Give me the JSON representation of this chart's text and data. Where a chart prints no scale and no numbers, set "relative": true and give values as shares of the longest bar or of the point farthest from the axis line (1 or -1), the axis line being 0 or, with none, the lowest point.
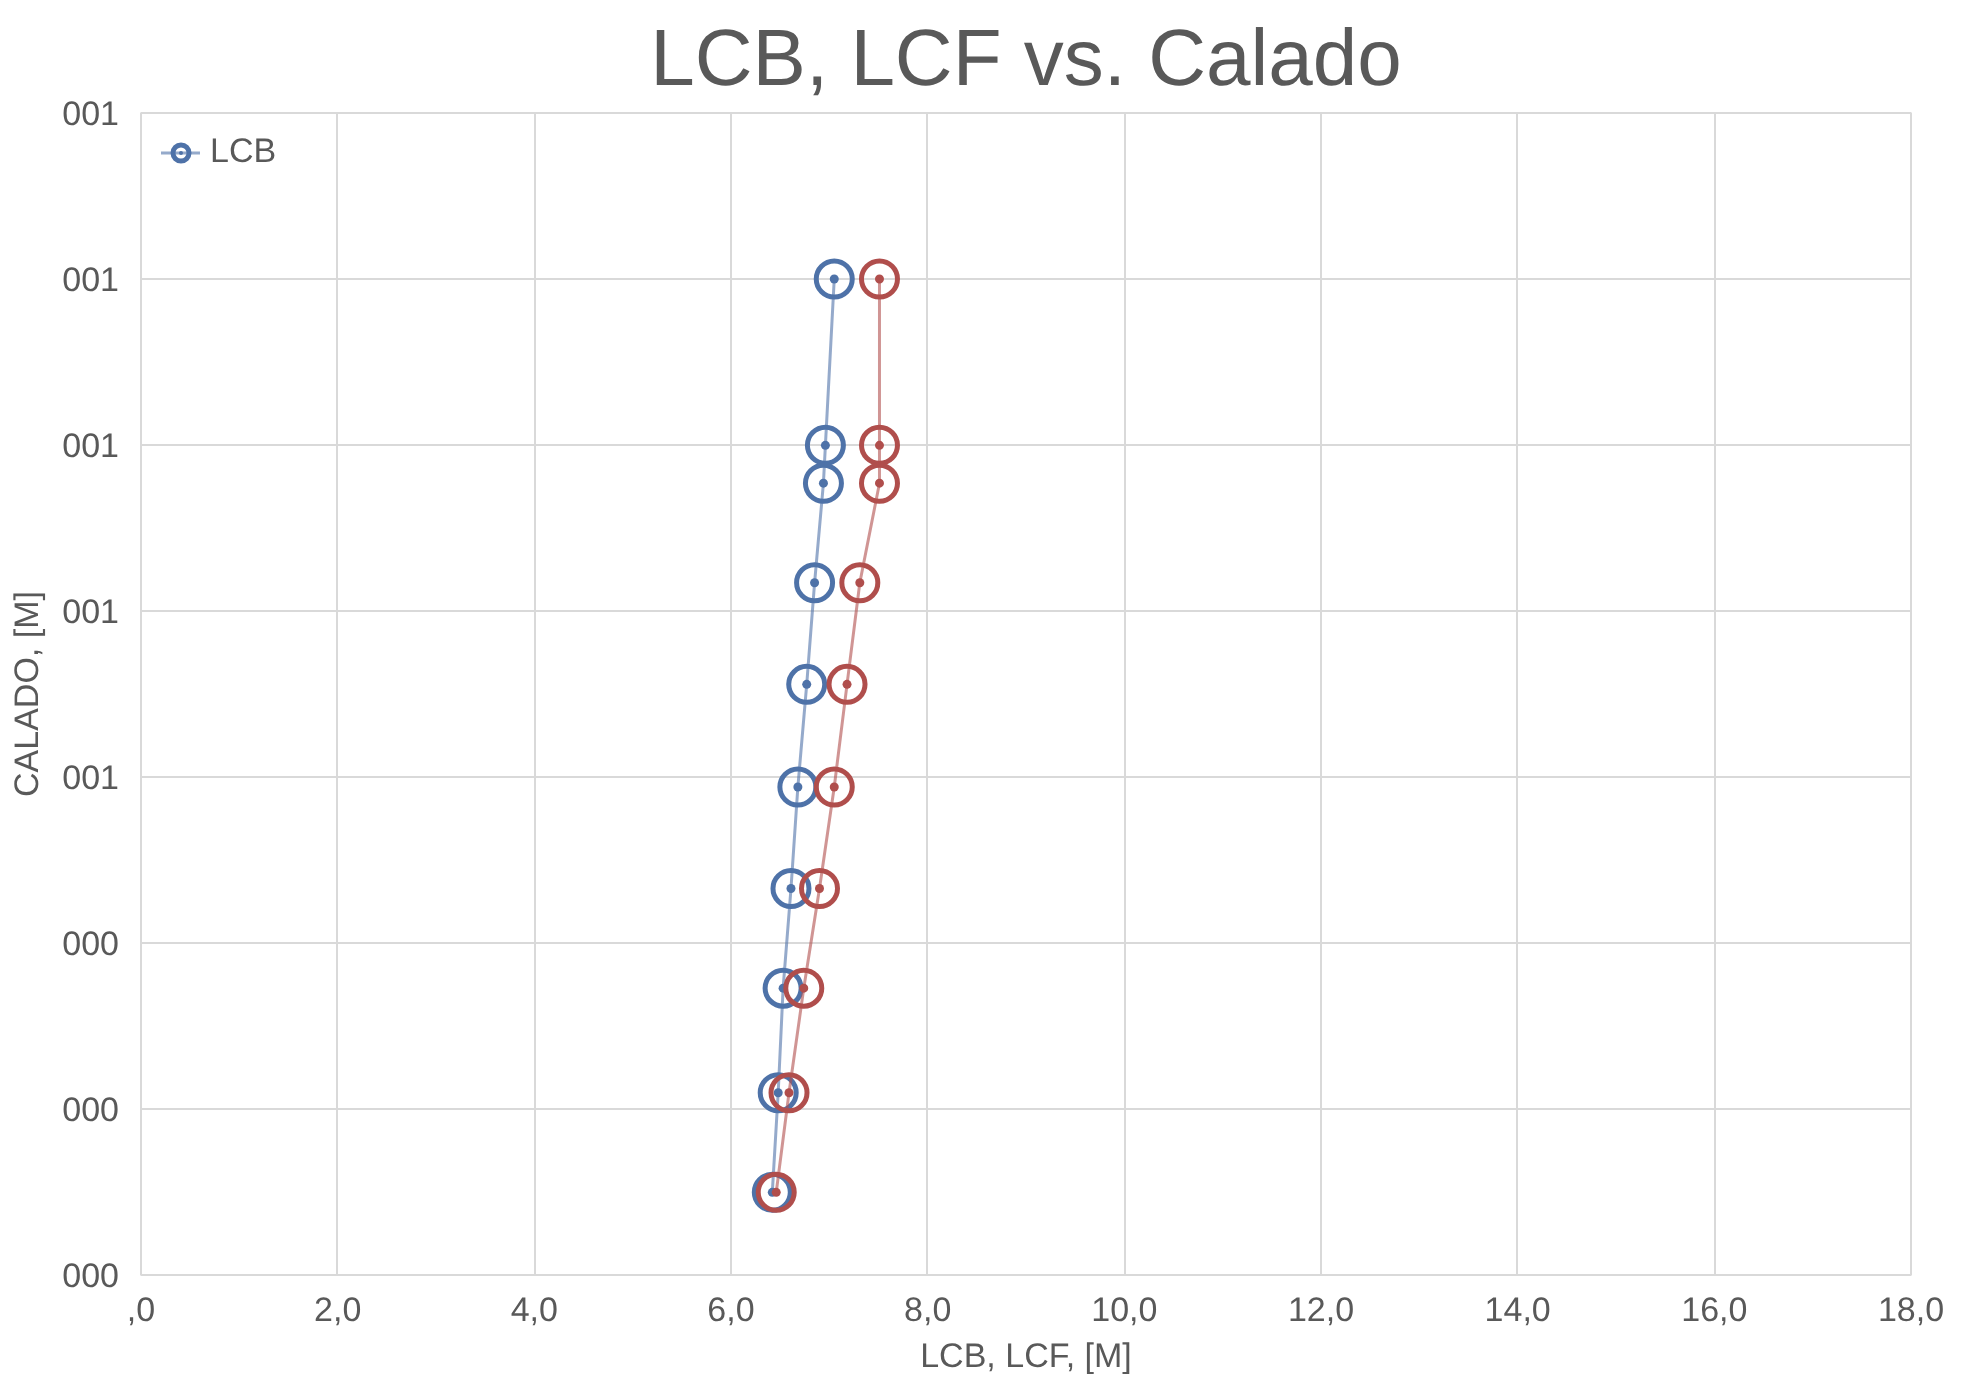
{
  "chart_data": {
    "type": "line",
    "title": "LCB, LCF vs. Calado",
    "xlabel": "LCB, LCF, [M]",
    "ylabel": "CALADO, [M]",
    "series": [
      {
        "name": "LCB",
        "color": "#4e72a8",
        "x": [
          7.05,
          6.96,
          6.94,
          6.85,
          6.77,
          6.68,
          6.61,
          6.53,
          6.48,
          6.42
        ],
        "values": [
          1,
          0.833,
          0.795,
          0.695,
          0.593,
          0.49,
          0.388,
          0.288,
          0.183,
          0.083
        ]
      },
      {
        "color": "#b04e4c",
        "x": [
          7.51,
          7.51,
          7.51,
          7.31,
          7.18,
          7.05,
          6.9,
          6.74,
          6.59,
          6.46
        ],
        "values": [
          1,
          0.833,
          0.795,
          0.695,
          0.593,
          0.49,
          0.388,
          0.288,
          0.183,
          0.083
        ]
      }
    ],
    "xlim": [
      0,
      18
    ],
    "xticks": [
      {
        "value": 0,
        "label": ",0"
      },
      {
        "value": 2,
        "label": "2,0"
      },
      {
        "value": 4,
        "label": "4,0"
      },
      {
        "value": 6,
        "label": "6,0"
      },
      {
        "value": 8,
        "label": "8,0"
      },
      {
        "value": 10,
        "label": "10,0"
      },
      {
        "value": 12,
        "label": "12,0"
      },
      {
        "value": 14,
        "label": "14,0"
      },
      {
        "value": 16,
        "label": "16,0"
      },
      {
        "value": 18,
        "label": "18,0"
      }
    ],
    "relative": true,
    "annotations": [
      "000",
      "000",
      "000",
      "001",
      "001",
      "001",
      "001",
      "001"
    ],
    "grid": true,
    "legend": "top left",
    "marker": "circle",
    "line_style": "solid"
  }
}
